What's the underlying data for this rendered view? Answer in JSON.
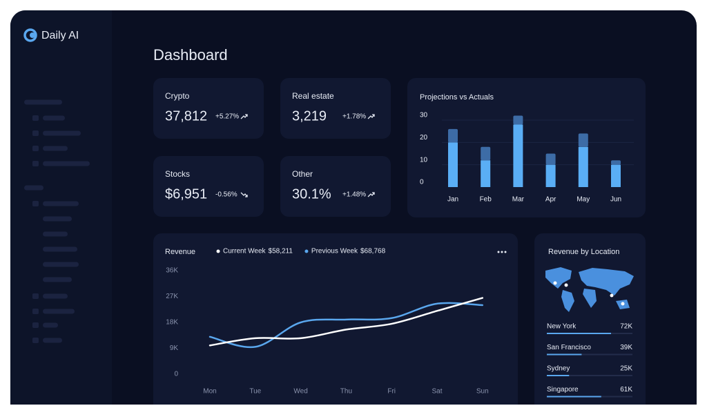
{
  "app": {
    "name": "Daily AI"
  },
  "page": {
    "title": "Dashboard"
  },
  "stats": [
    {
      "label": "Crypto",
      "value": "37,812",
      "change": "+5.27%",
      "trend": "up"
    },
    {
      "label": "Real estate",
      "value": "3,219",
      "change": "+1.78%",
      "trend": "up"
    },
    {
      "label": "Stocks",
      "value": "$6,951",
      "change": "-0.56%",
      "trend": "down"
    },
    {
      "label": "Other",
      "value": "30.1%",
      "change": "+1.48%",
      "trend": "up"
    }
  ],
  "projections": {
    "type": "bar",
    "stacked": true,
    "title": "Projections vs Actuals",
    "categories": [
      "Jan",
      "Feb",
      "Mar",
      "Apr",
      "May",
      "Jun"
    ],
    "series": [
      {
        "color": "#5aaef5",
        "values": [
          20,
          12,
          28,
          10,
          18,
          10
        ]
      },
      {
        "color": "#3d6ca6",
        "values": [
          6,
          6,
          4,
          5,
          6,
          2
        ]
      }
    ],
    "ylim": [
      0,
      32
    ],
    "yticks": [
      0,
      10,
      20,
      30
    ],
    "grid": true
  },
  "revenue": {
    "type": "line",
    "title": "Revenue",
    "categories": [
      "Mon",
      "Tue",
      "Wed",
      "Thu",
      "Fri",
      "Sat",
      "Sun"
    ],
    "series": [
      {
        "name": "Current Week",
        "legend_value": "$58,211",
        "color": "#ffffff",
        "values": [
          10000,
          12500,
          12500,
          15500,
          17500,
          22000,
          26500
        ]
      },
      {
        "name": "Previous Week",
        "legend_value": "$68,768",
        "color": "#5aa7ee",
        "values": [
          13000,
          9500,
          18000,
          19000,
          19500,
          24500,
          24000
        ]
      }
    ],
    "ylim": [
      0,
      36000
    ],
    "yticks": [
      0,
      {
        "value": 9000,
        "label": "9K"
      },
      {
        "value": 18000,
        "label": "18K"
      },
      {
        "value": 27000,
        "label": "27K"
      },
      {
        "value": 36000,
        "label": "36K"
      }
    ]
  },
  "locations": {
    "type": "bar",
    "title": "Revenue by Location",
    "categories": [
      "New York",
      "San Francisco",
      "Sydney",
      "Singapore"
    ],
    "values": [
      72000,
      39000,
      25000,
      61000
    ],
    "value_labels": [
      "72K",
      "39K",
      "25K",
      "61K"
    ],
    "color": "#5aa7ee",
    "xlim": [
      0,
      96000
    ]
  }
}
